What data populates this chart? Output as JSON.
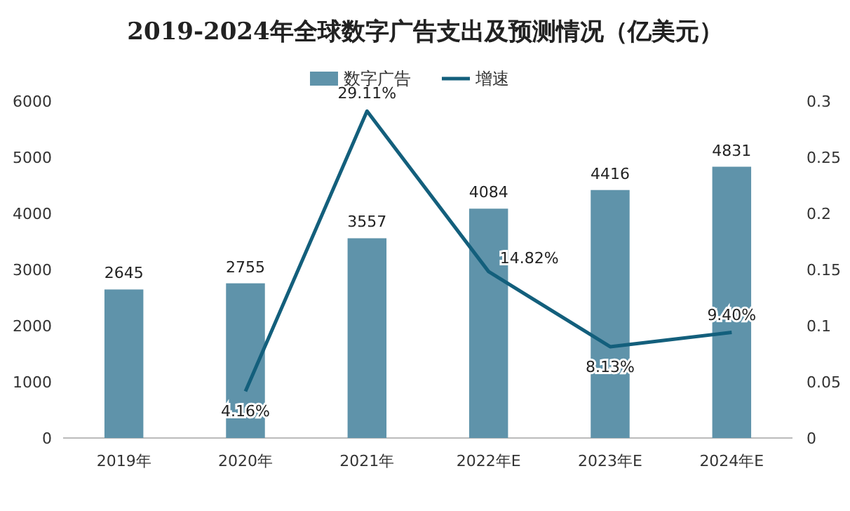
{
  "chart_data": {
    "type": "bar",
    "title": "2019-2024年全球数字广告支出及预测情况（亿美元）",
    "categories": [
      "2019年",
      "2020年",
      "2021年",
      "2022年E",
      "2023年E",
      "2024年E"
    ],
    "series": [
      {
        "name": "数字广告",
        "color": "#5f93aa",
        "values": [
          2645,
          2755,
          3557,
          4084,
          4416,
          4831
        ],
        "value_labels": [
          "2645",
          "2755",
          "3557",
          "4084",
          "4416",
          "4831"
        ]
      },
      {
        "name": "增速",
        "type": "line",
        "axis": "y2",
        "color": "#135f7c",
        "values": [
          null,
          0.0416,
          0.2911,
          0.1482,
          0.0813,
          0.094
        ],
        "value_labels": [
          null,
          "4.16%",
          "29.11%",
          "14.82%",
          "8.13%",
          "9.40%"
        ]
      }
    ],
    "ylim": [
      0,
      6000
    ],
    "yticks": [
      0,
      1000,
      2000,
      3000,
      4000,
      5000,
      6000
    ],
    "y2lim": [
      0,
      0.3
    ],
    "y2ticks": [
      0,
      0.05,
      0.1,
      0.15,
      0.2,
      0.25,
      0.3
    ],
    "legend": "top",
    "grid": false
  }
}
